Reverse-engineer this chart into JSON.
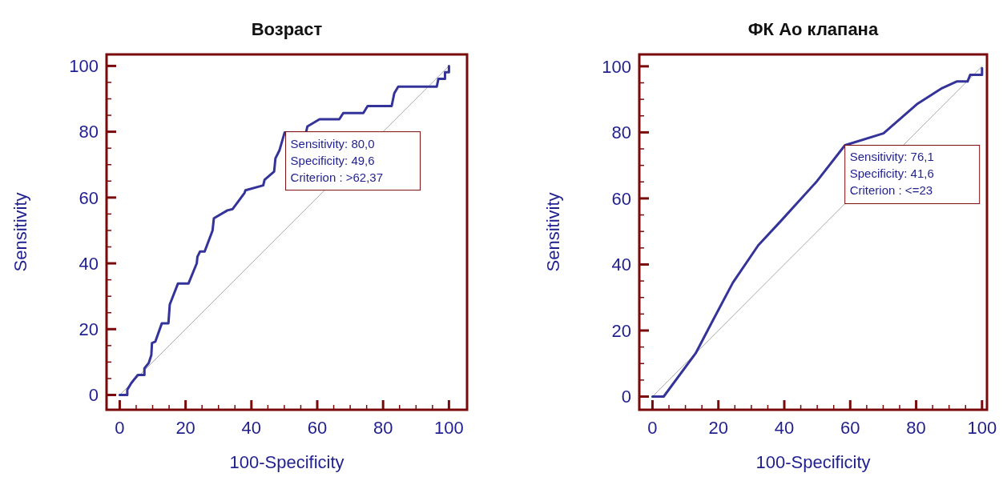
{
  "chart_data": [
    {
      "type": "line",
      "title": "Возраст",
      "xlabel": "100-Specificity",
      "ylabel": "Sensitivity",
      "xlim": [
        -4,
        105.5
      ],
      "ylim": [
        -4.5,
        103.5
      ],
      "xticks": [
        0,
        {
          "value": 5,
          "label": null
        },
        {
          "value": 10,
          "label": null
        },
        {
          "value": 15,
          "label": null
        },
        20,
        {
          "value": 25,
          "label": null
        },
        {
          "value": 30,
          "label": null
        },
        {
          "value": 35,
          "label": null
        },
        40,
        {
          "value": 45,
          "label": null
        },
        {
          "value": 50,
          "label": null
        },
        {
          "value": 55,
          "label": null
        },
        60,
        {
          "value": 65,
          "label": null
        },
        {
          "value": 70,
          "label": null
        },
        {
          "value": 75,
          "label": null
        },
        80,
        {
          "value": 85,
          "label": null
        },
        {
          "value": 90,
          "label": null
        },
        {
          "value": 95,
          "label": null
        },
        100
      ],
      "yticks": [
        0,
        {
          "value": 5,
          "label": null
        },
        {
          "value": 10,
          "label": null
        },
        {
          "value": 15,
          "label": null
        },
        20,
        {
          "value": 25,
          "label": null
        },
        {
          "value": 30,
          "label": null
        },
        {
          "value": 35,
          "label": null
        },
        40,
        {
          "value": 45,
          "label": null
        },
        {
          "value": 50,
          "label": null
        },
        {
          "value": 55,
          "label": null
        },
        60,
        {
          "value": 65,
          "label": null
        },
        {
          "value": 70,
          "label": null
        },
        {
          "value": 75,
          "label": null
        },
        80,
        {
          "value": 85,
          "label": null
        },
        {
          "value": 90,
          "label": null
        },
        {
          "value": 95,
          "label": null
        },
        100
      ],
      "series": [
        {
          "color": "#333399",
          "x": [
            0,
            2.3,
            2.3,
            3.5,
            5.5,
            7.5,
            7.5,
            8.8,
            9.6,
            9.8,
            10.8,
            12.8,
            14.8,
            15.2,
            17.7,
            20.9,
            23.4,
            23.6,
            24.4,
            25.8,
            28.2,
            28.6,
            32.7,
            34.3,
            37.9,
            38.2,
            43.6,
            44,
            46.9,
            47.3,
            48.5,
            50.1,
            56.6,
            57,
            60.7,
            66.7,
            67.9,
            74,
            75.3,
            82.6,
            83.4,
            84.6,
            96.3,
            96.8,
            98.8,
            98.8,
            100,
            100
          ],
          "values": [
            0,
            0,
            1.6,
            3.6,
            6.1,
            6.1,
            8.1,
            9.7,
            12.1,
            15.8,
            16.2,
            21.8,
            21.8,
            27.5,
            33.9,
            33.9,
            40,
            42,
            43.6,
            43.6,
            50,
            53.7,
            56.1,
            56.5,
            61.4,
            62.2,
            63.7,
            65.4,
            67.9,
            71.9,
            74.3,
            79.8,
            79.8,
            81.6,
            83.8,
            83.8,
            85.7,
            85.7,
            87.8,
            87.8,
            91.7,
            93.7,
            93.7,
            96.1,
            96.1,
            98.1,
            98.1,
            100
          ]
        },
        {
          "color": "#a8a8a8",
          "x": [
            0,
            100
          ],
          "values": [
            0,
            100
          ]
        }
      ],
      "annotations": [
        {
          "text": "Sensitivity: 80,0",
          "x": 50.4,
          "y": 80
        },
        "Specificity: 49,6",
        "Criterion : >62,37"
      ]
    },
    {
      "type": "line",
      "title": "ФК Ао клапана",
      "xlabel": "100-Specificity",
      "ylabel": "Sensitivity",
      "xlim": [
        -4,
        101.5
      ],
      "ylim": [
        -4,
        103.6
      ],
      "xticks": [
        0,
        {
          "value": 5,
          "label": null
        },
        {
          "value": 10,
          "label": null
        },
        {
          "value": 15,
          "label": null
        },
        20,
        {
          "value": 25,
          "label": null
        },
        {
          "value": 30,
          "label": null
        },
        {
          "value": 35,
          "label": null
        },
        40,
        {
          "value": 45,
          "label": null
        },
        {
          "value": 50,
          "label": null
        },
        {
          "value": 55,
          "label": null
        },
        60,
        {
          "value": 65,
          "label": null
        },
        {
          "value": 70,
          "label": null
        },
        {
          "value": 75,
          "label": null
        },
        80,
        {
          "value": 85,
          "label": null
        },
        {
          "value": 90,
          "label": null
        },
        {
          "value": 95,
          "label": null
        },
        100
      ],
      "yticks": [
        0,
        {
          "value": 5,
          "label": null
        },
        {
          "value": 10,
          "label": null
        },
        {
          "value": 15,
          "label": null
        },
        20,
        {
          "value": 25,
          "label": null
        },
        {
          "value": 30,
          "label": null
        },
        {
          "value": 35,
          "label": null
        },
        40,
        {
          "value": 45,
          "label": null
        },
        {
          "value": 50,
          "label": null
        },
        {
          "value": 55,
          "label": null
        },
        60,
        {
          "value": 65,
          "label": null
        },
        {
          "value": 70,
          "label": null
        },
        {
          "value": 75,
          "label": null
        },
        80,
        {
          "value": 85,
          "label": null
        },
        {
          "value": 90,
          "label": null
        },
        {
          "value": 95,
          "label": null
        },
        100
      ],
      "series": [
        {
          "color": "#333399",
          "x": [
            0,
            3.4,
            13.1,
            18.4,
            24.4,
            32.1,
            38.9,
            49.9,
            58.4,
            70.1,
            80.2,
            87.9,
            92.3,
            95.6,
            96.4,
            100,
            100
          ],
          "values": [
            0,
            0,
            13.1,
            23.2,
            34.5,
            45.8,
            53.1,
            65.2,
            76.1,
            79.7,
            88.5,
            93.4,
            95.4,
            95.4,
            97.4,
            97.4,
            99.4
          ]
        },
        {
          "color": "#a8a8a8",
          "x": [
            0,
            100
          ],
          "values": [
            0,
            100
          ]
        }
      ],
      "annotations": [
        {
          "text": "Sensitivity: 76,1",
          "x": 58.4,
          "y": 76.1
        },
        "Specificity: 41,6",
        "Criterion : <=23"
      ]
    }
  ]
}
